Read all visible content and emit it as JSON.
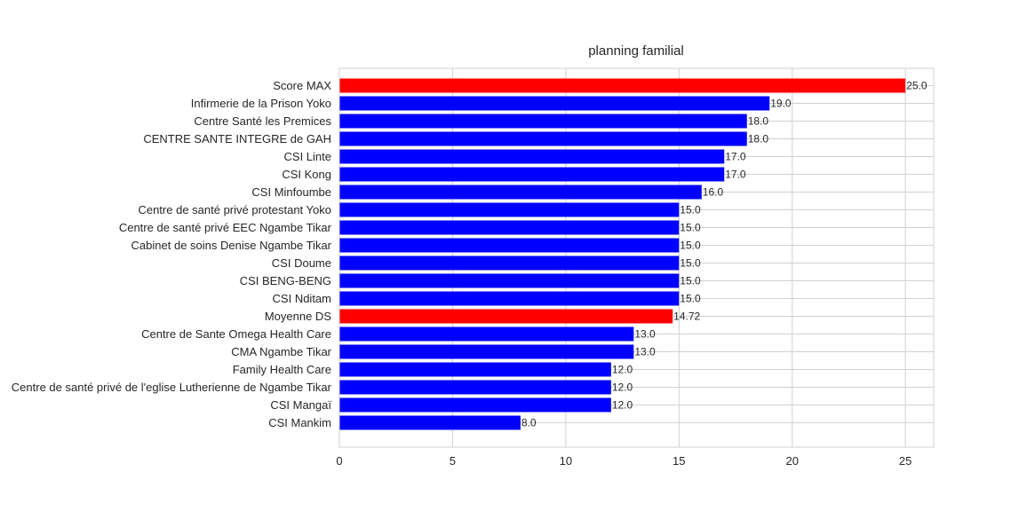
{
  "chart_data": {
    "type": "bar",
    "orientation": "horizontal",
    "title": "planning familial",
    "xlabel": "",
    "ylabel": "",
    "xlim": [
      0,
      26.25
    ],
    "xticks": [
      0,
      5,
      10,
      15,
      20,
      25
    ],
    "grid": true,
    "legend": "none",
    "colors": {
      "highlight": "#ff0000",
      "default": "#0000ff"
    },
    "categories": [
      "Score MAX",
      "Infirmerie de la Prison Yoko",
      "Centre Santé les Premices",
      "CENTRE SANTE INTEGRE  de GAH",
      "CSI Linte",
      "CSI Kong",
      "CSI Minfoumbe",
      "Centre de santé privé protestant Yoko",
      "Centre de santé privé EEC Ngambe Tikar",
      "Cabinet de soins Denise Ngambe Tikar",
      "CSI Doume",
      "CSI BENG-BENG",
      "CSI Nditam",
      "Moyenne DS",
      "Centre de Sante Omega Health  Care",
      "CMA Ngambe Tikar",
      "Family Health Care",
      "Centre de santé privé  de l'eglise Lutherienne de Ngambe Tikar",
      "CSI Mangaï",
      "CSI Mankim"
    ],
    "values": [
      25.0,
      19.0,
      18.0,
      18.0,
      17.0,
      17.0,
      16.0,
      15.0,
      15.0,
      15.0,
      15.0,
      15.0,
      15.0,
      14.72,
      13.0,
      13.0,
      12.0,
      12.0,
      12.0,
      8.0
    ],
    "value_labels": [
      "25.0",
      "19.0",
      "18.0",
      "18.0",
      "17.0",
      "17.0",
      "16.0",
      "15.0",
      "15.0",
      "15.0",
      "15.0",
      "15.0",
      "15.0",
      "14.72",
      "13.0",
      "13.0",
      "12.0",
      "12.0",
      "12.0",
      "8.0"
    ],
    "highlighted": [
      "Score MAX",
      "Moyenne DS"
    ]
  }
}
